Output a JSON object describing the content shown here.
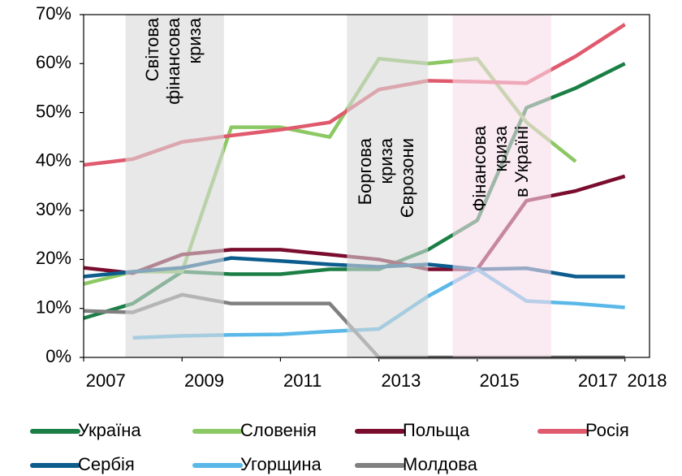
{
  "chart_data": {
    "type": "line",
    "x": [
      2007,
      2008,
      2009,
      2010,
      2011,
      2012,
      2013,
      2014,
      2015,
      2016,
      2017,
      2018
    ],
    "xlim": [
      2007,
      2018.5
    ],
    "xticks": [
      2007,
      2009,
      2011,
      2013,
      2015,
      2017,
      2018
    ],
    "ylim": [
      0,
      70
    ],
    "yticks": [
      {
        "value": 0,
        "label": "0%"
      },
      {
        "value": 10,
        "label": "10%"
      },
      {
        "value": 20,
        "label": "20%"
      },
      {
        "value": 30,
        "label": "30%"
      },
      {
        "value": 40,
        "label": "40%"
      },
      {
        "value": 50,
        "label": "50%"
      },
      {
        "value": 60,
        "label": "60%"
      },
      {
        "value": 70,
        "label": "70%"
      }
    ],
    "shaded_regions": [
      {
        "start": 2007.85,
        "end": 2009.85,
        "color": "#d9d9d9",
        "label": [
          "Світова",
          "фінансова",
          "криза"
        ]
      },
      {
        "start": 2012.35,
        "end": 2014.0,
        "color": "#d9d9d9",
        "label": [
          "Боргова",
          "криза",
          "Єврозони"
        ]
      },
      {
        "start": 2014.5,
        "end": 2016.5,
        "color": "#f6dce9",
        "label": [
          "Фінансова",
          "криза",
          "в Україні"
        ]
      }
    ],
    "series": [
      {
        "name": "Україна",
        "color": "#1b7f45",
        "values": [
          8,
          11,
          17.5,
          17,
          17,
          18,
          18,
          22,
          28,
          51,
          55,
          60
        ]
      },
      {
        "name": "Словенія",
        "color": "#8cc864",
        "values": [
          15,
          17.5,
          17.5,
          47,
          47,
          45,
          61,
          60,
          61,
          48,
          40,
          null
        ]
      },
      {
        "name": "Польща",
        "color": "#7a0c2e",
        "values": [
          18.3,
          17.2,
          21,
          22,
          22,
          21,
          20,
          18,
          18,
          32,
          34,
          37
        ]
      },
      {
        "name": "Росія",
        "color": "#e05a6e",
        "values": [
          39.3,
          40.5,
          44,
          45.3,
          46.5,
          48,
          54.7,
          56.5,
          56.3,
          56,
          61.5,
          68
        ]
      },
      {
        "name": "Сербія",
        "color": "#0c5c8e",
        "values": [
          16.5,
          17.5,
          18.3,
          20.3,
          19.7,
          19,
          18.5,
          19,
          18,
          18.2,
          16.5,
          16.5
        ]
      },
      {
        "name": "Угорщина",
        "color": "#5ab8e8",
        "values": [
          null,
          4,
          4.4,
          4.6,
          4.7,
          5.3,
          5.8,
          12.5,
          18,
          11.5,
          11,
          10.2
        ]
      },
      {
        "name": "Молдова",
        "color": "#808080",
        "values": [
          9.5,
          9.2,
          12.8,
          11,
          11,
          11,
          0,
          0,
          0,
          0,
          0,
          0
        ]
      }
    ]
  }
}
